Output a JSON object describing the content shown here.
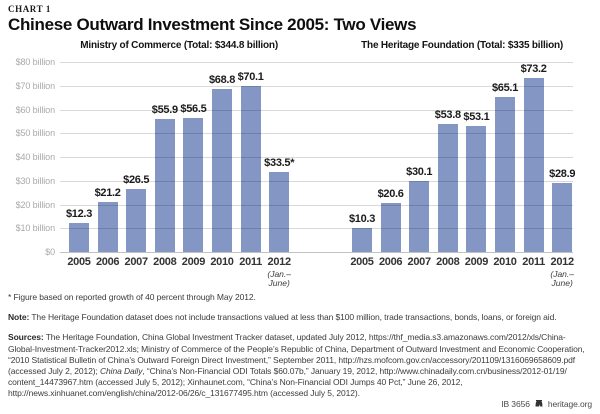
{
  "header": {
    "chart_label": "CHART 1",
    "title": "Chinese Outward Investment Since 2005: Two Views"
  },
  "chart_data": {
    "type": "bar",
    "unit": "US$ billions",
    "bar_color": "#8396c4",
    "grid": true,
    "legend_position": "none",
    "ylim": [
      0,
      80
    ],
    "y_ticks": [
      "$0",
      "$10 billion",
      "$20 billion",
      "$30 billion",
      "$40 billion",
      "$50 billion",
      "$60 billion",
      "$70 billion",
      "$80 billion"
    ],
    "categories": [
      "2005",
      "2006",
      "2007",
      "2008",
      "2009",
      "2010",
      "2011",
      "2012"
    ],
    "last_category_note_lines": [
      "(Jan.–",
      "June)"
    ],
    "panels": [
      {
        "title": "Ministry of Commerce (Total: $344.8 billion)",
        "values": [
          12.3,
          21.2,
          26.5,
          55.9,
          56.5,
          68.8,
          70.1,
          33.5
        ],
        "labels": [
          "$12.3",
          "$21.2",
          "$26.5",
          "$55.9",
          "$56.5",
          "$68.8",
          "$70.1",
          "$33.5*"
        ]
      },
      {
        "title": "The Heritage Foundation (Total: $335 billion)",
        "values": [
          10.3,
          20.6,
          30.1,
          53.8,
          53.1,
          65.1,
          73.2,
          28.9
        ],
        "labels": [
          "$10.3",
          "$20.6",
          "$30.1",
          "$53.8",
          "$53.1",
          "$65.1",
          "$73.2",
          "$28.9"
        ]
      }
    ]
  },
  "footnotes": {
    "asterisk": "* Figure based on reported growth of 40 percent through May 2012.",
    "note_label": "Note:",
    "note_text": "The Heritage Foundation dataset does not include transactions valued at less than $100 million, trade transactions, bonds, loans, or foreign aid.",
    "sources_label": "Sources:",
    "sources_segments": [
      {
        "style": "normal",
        "text": "The Heritage Foundation, China Global Investment Tracker dataset, updated July 2012,  https://thf_media.s3.amazonaws.com/2012/xls/China-Global-Investment-Tracker2012.xls; Ministry of Commerce of the People’s Republic of China, Department of Outward Investment and Economic Cooperation, “2010 Statistical Bulletin of China’s Outward Foreign Direct Investment,” September 2011, http://hzs.mofcom.gov.cn/accessory/201109/1316069658609.pdf (accessed July 2, 2012); "
      },
      {
        "style": "italic",
        "text": "China Daily"
      },
      {
        "style": "normal",
        "text": ", “China’s Non-Financial ODI Totals $60.07b,” January 19, 2012, http://www.chinadaily.com.cn/business/2012-01/19/ content_14473967.htm (accessed July 5, 2012); Xinhaunet.com, “China’s Non-Financial ODI Jumps 40 Pct,” June 26, 2012, http://news.xinhuanet.com/english/china/2012-06/26/c_131677495.htm (accessed July 5, 2012)."
      }
    ]
  },
  "footer": {
    "id_text": "IB 3656",
    "logo_icon": "heritage-logo",
    "site": "heritage.org"
  }
}
